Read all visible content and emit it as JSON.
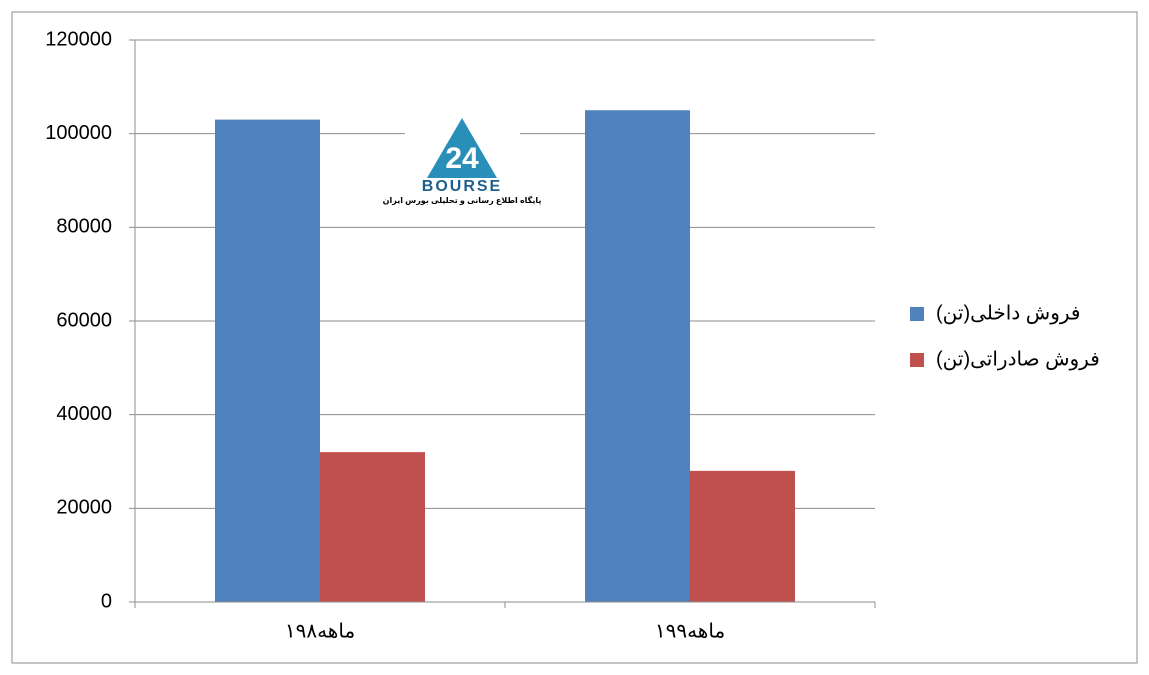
{
  "chart_data": {
    "type": "bar",
    "categories": [
      "۱ماهه۹۸",
      "۱ماهه۹۹"
    ],
    "series": [
      {
        "name": "فروش داخلی(تن)",
        "color": "#4f81bd",
        "values": [
          103000,
          105000
        ]
      },
      {
        "name": "فروش صادراتی(تن)",
        "color": "#c0504d",
        "values": [
          32000,
          28000
        ]
      }
    ],
    "ylim": [
      0,
      120000
    ],
    "yticks": [
      0,
      20000,
      40000,
      60000,
      80000,
      100000,
      120000
    ],
    "grid": true,
    "legend": "right"
  },
  "watermark": {
    "number": "24",
    "name": "BOURSE",
    "tagline": "پایگاه اطلاع رسانی و تحلیلی بورس ایران"
  }
}
